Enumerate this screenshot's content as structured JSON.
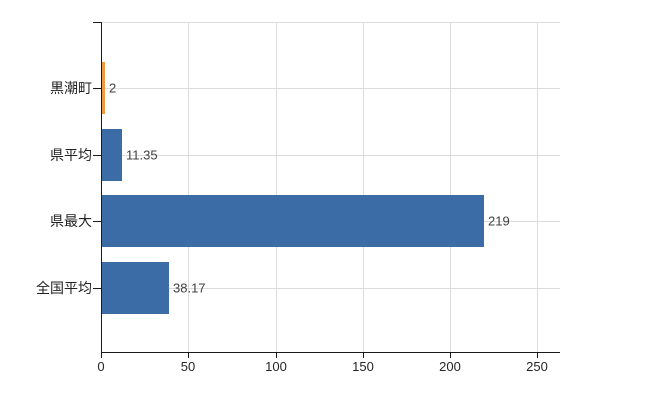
{
  "chart_data": {
    "type": "bar",
    "orientation": "horizontal",
    "title": "",
    "categories": [
      "黒潮町",
      "県平均",
      "県最大",
      "全国平均"
    ],
    "values": [
      2,
      11.35,
      219,
      38.17
    ],
    "value_labels": [
      "2",
      "11.35",
      "219",
      "38.17"
    ],
    "colors": [
      "#EE9A3E",
      "#3C6CA6",
      "#3C6CA6",
      "#3C6CA6"
    ],
    "x_ticks": [
      0,
      50,
      100,
      150,
      200,
      250
    ],
    "x_tick_labels": [
      "0",
      "50",
      "100",
      "150",
      "200",
      "250"
    ],
    "xlim": [
      0,
      263
    ],
    "grid": true,
    "legend": false,
    "background_color": "#FFFFFF",
    "gridline_color": "#DCDCDC",
    "axis_color": "#1A1A1A",
    "category_label_color": "#222222",
    "value_label_color": "#404040",
    "tick_label_color": "#262626"
  }
}
